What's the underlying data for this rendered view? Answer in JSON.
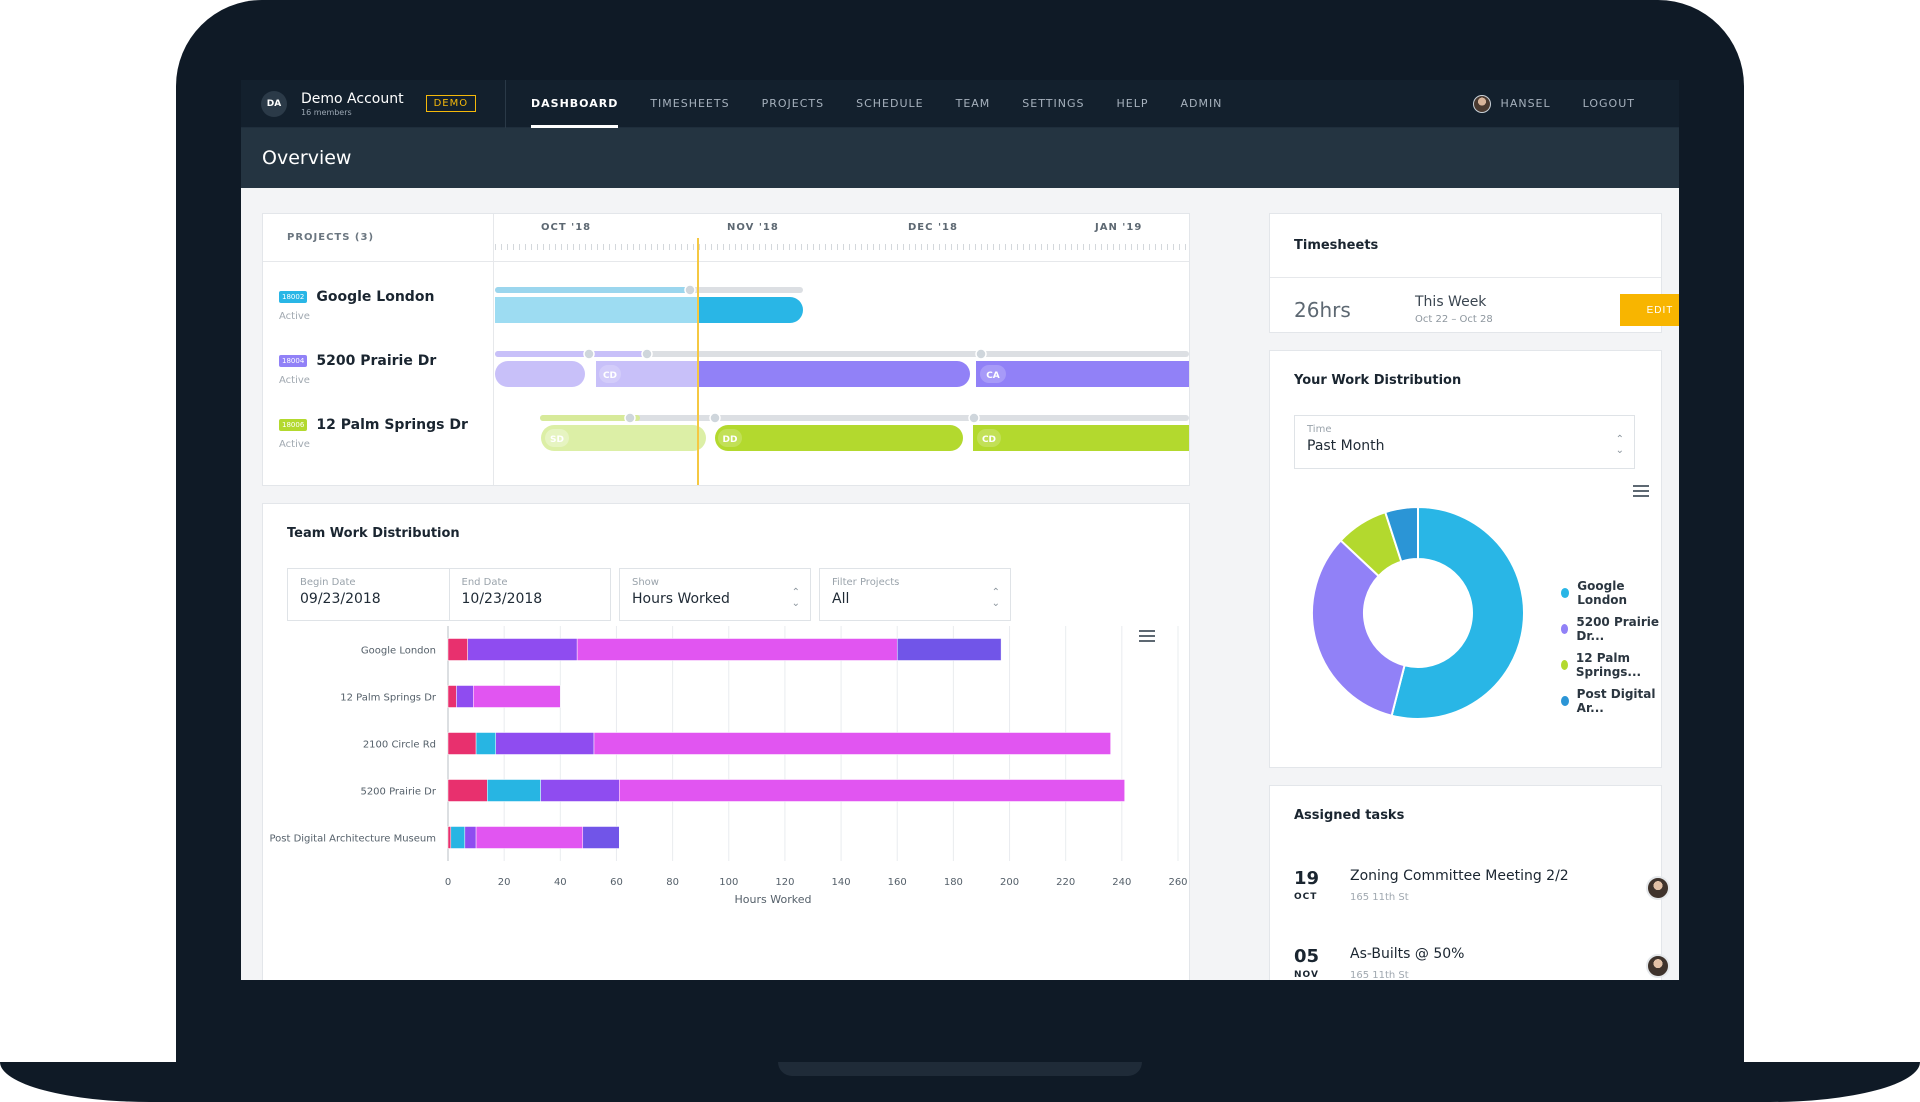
{
  "account": {
    "initials": "DA",
    "name": "Demo Account",
    "members": "16 members",
    "badge": "DEMO"
  },
  "nav": {
    "items": [
      "DASHBOARD",
      "TIMESHEETS",
      "PROJECTS",
      "SCHEDULE",
      "TEAM",
      "SETTINGS",
      "HELP",
      "ADMIN"
    ],
    "active": "DASHBOARD",
    "user": "HANSEL",
    "logout": "LOGOUT"
  },
  "page_title": "Overview",
  "timeline": {
    "label": "PROJECTS (3)",
    "months": [
      "OCT '18",
      "NOV '18",
      "DEC '18",
      "JAN '19"
    ],
    "projects": [
      {
        "code": "18002",
        "name": "Google London",
        "status": "Active",
        "color": "#29b6e6"
      },
      {
        "code": "18004",
        "name": "5200 Prairie Dr",
        "status": "Active",
        "color": "#9181f7"
      },
      {
        "code": "18006",
        "name": "12 Palm Springs Dr",
        "status": "Active",
        "color": "#b3d92e"
      }
    ],
    "phases": [
      "CD",
      "CA",
      "SD",
      "DD",
      "CD"
    ]
  },
  "team_distribution": {
    "title": "Team Work Distribution",
    "begin_label": "Begin Date",
    "begin_value": "09/23/2018",
    "end_label": "End Date",
    "end_value": "10/23/2018",
    "show_label": "Show",
    "show_value": "Hours Worked",
    "filter_label": "Filter Projects",
    "filter_value": "All"
  },
  "chart_data": {
    "type": "bar",
    "orientation": "horizontal",
    "stacked": true,
    "categories": [
      "Google London",
      "12 Palm Springs Dr",
      "2100 Circle Rd",
      "5200 Prairie Dr",
      "Post Digital Architecture Museum"
    ],
    "series": [
      {
        "color": "#e8306e",
        "values": [
          7,
          3,
          10,
          14,
          1
        ]
      },
      {
        "color": "#27b5e3",
        "values": [
          0,
          0,
          7,
          19,
          5
        ]
      },
      {
        "color": "#8f4cf0",
        "values": [
          39,
          6,
          35,
          28,
          4
        ]
      },
      {
        "color": "#e155f1",
        "values": [
          114,
          31,
          184,
          180,
          38
        ]
      },
      {
        "color": "#7155e8",
        "values": [
          37,
          0,
          0,
          0,
          13
        ]
      }
    ],
    "xlabel": "Hours Worked",
    "xlim": [
      0,
      260
    ],
    "xticks": [
      "0",
      "20",
      "40",
      "60",
      "80",
      "100",
      "120",
      "140",
      "160",
      "180",
      "200",
      "220",
      "240",
      "260"
    ],
    "grid": true
  },
  "timesheets": {
    "title": "Timesheets",
    "hours": "26hrs",
    "period": "This Week",
    "range": "Oct 22 – Oct 28",
    "edit_label": "EDIT"
  },
  "work_distribution": {
    "title": "Your Work Distribution",
    "time_label": "Time",
    "time_value": "Past Month",
    "donut": [
      {
        "label": "Google London",
        "value": 54,
        "color": "#29b6e6"
      },
      {
        "label": "5200 Prairie Dr...",
        "value": 33,
        "color": "#9181f7"
      },
      {
        "label": "12 Palm Springs...",
        "value": 8,
        "color": "#b3d92e"
      },
      {
        "label": "Post Digital Ar...",
        "value": 5,
        "color": "#2b95d6"
      }
    ]
  },
  "tasks": {
    "title": "Assigned tasks",
    "items": [
      {
        "day": "19",
        "month": "OCT",
        "title": "Zoning Committee Meeting 2/2",
        "sub": "165 11th St"
      },
      {
        "day": "05",
        "month": "NOV",
        "title": "As-Builts @ 50%",
        "sub": "165 11th St"
      }
    ]
  }
}
